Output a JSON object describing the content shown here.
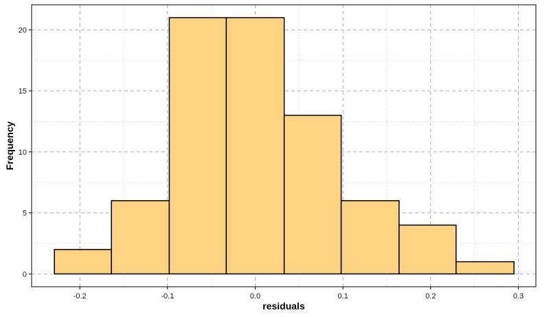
{
  "chart_data": {
    "type": "bar",
    "subtype": "histogram",
    "title": "",
    "xlabel": "residuals",
    "ylabel": "Frequency",
    "bin_edges": [
      -0.229,
      -0.164,
      -0.098,
      -0.033,
      0.033,
      0.098,
      0.164,
      0.229,
      0.295
    ],
    "values": [
      2,
      6,
      21,
      21,
      13,
      6,
      4,
      1
    ],
    "xlim": [
      -0.255,
      0.32
    ],
    "ylim": [
      -1.05,
      22.05
    ],
    "x_ticks": [
      -0.2,
      -0.1,
      0.0,
      0.1,
      0.2,
      0.3
    ],
    "x_tick_labels": [
      "-0.2",
      "-0.1",
      "0.0",
      "0.1",
      "0.2",
      "0.3"
    ],
    "y_ticks": [
      0,
      5,
      10,
      15,
      20
    ],
    "y_tick_labels": [
      "0",
      "5",
      "10",
      "15",
      "20"
    ],
    "grid": true,
    "colors": {
      "bar_fill": "#fed382",
      "bar_edge": "#000000",
      "major_grid": "#b3b3b3",
      "minor_grid": "#d6d6d6",
      "axis": "#000000"
    }
  }
}
